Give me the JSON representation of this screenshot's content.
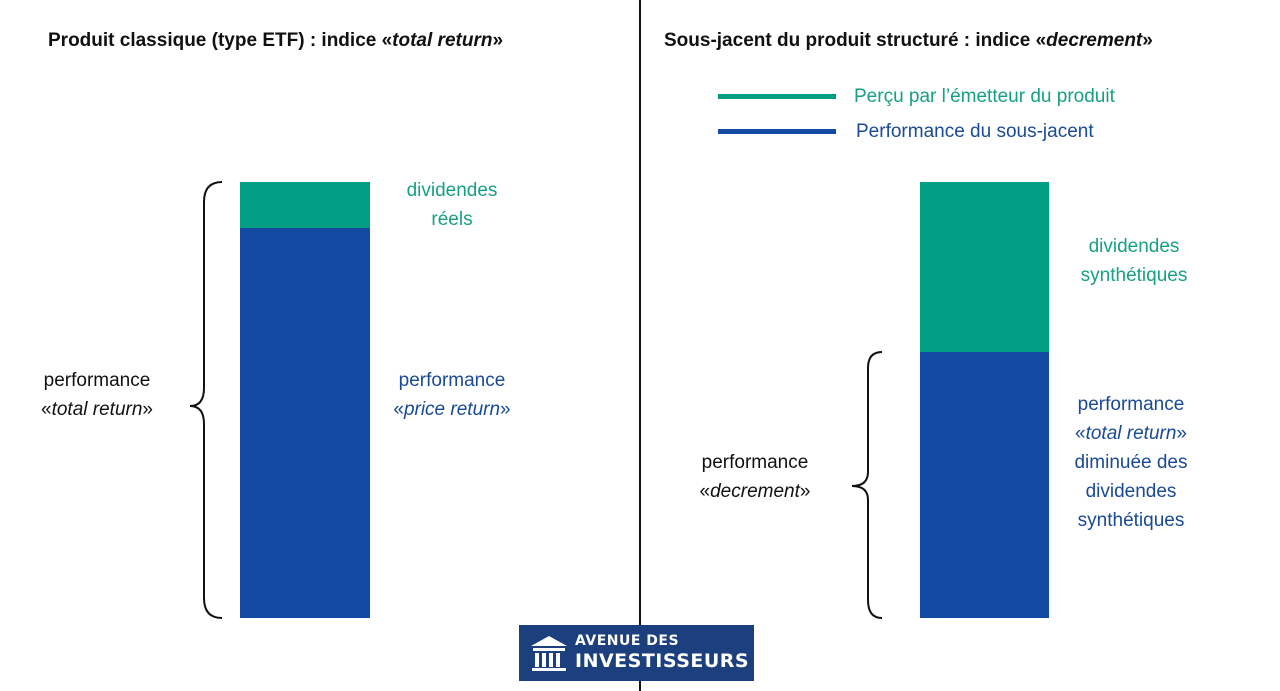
{
  "left_panel": {
    "title_prefix": "Produit classique (type ETF) : indice «",
    "title_italic": "total return",
    "title_suffix": "»",
    "top_segment_label": [
      "dividendes",
      "réels"
    ],
    "bottom_segment_label": {
      "line1": "performance",
      "line2_prefix": "«",
      "line2_italic": "price return",
      "line2_suffix": "»"
    },
    "brace_label": {
      "line1": "performance",
      "line2_prefix": "«",
      "line2_italic": "total return",
      "line2_suffix": "»"
    }
  },
  "right_panel": {
    "title_prefix": "Sous-jacent du produit structuré : indice «",
    "title_italic": "decrement",
    "title_suffix": "»",
    "legend": [
      {
        "label": "Perçu par l’émetteur du produit",
        "color": "#009e83"
      },
      {
        "label": "Performance du sous-jacent",
        "color": "#124aa4"
      }
    ],
    "top_segment_label": [
      "dividendes",
      "synthétiques"
    ],
    "bottom_segment_label": {
      "line1": "performance",
      "line2_prefix": "«",
      "line2_italic": "total return",
      "line2_suffix": "»",
      "line3": "diminuée des",
      "line4": "dividendes",
      "line5": "synthétiques"
    },
    "brace_label": {
      "line1": "performance",
      "line2_prefix": "«",
      "line2_italic": "decrement",
      "line2_suffix": "»"
    }
  },
  "logo": {
    "line1": "AVENUE DES",
    "line2": "INVESTISSEURS",
    "icon": "columns-building-icon"
  },
  "colors": {
    "teal": "#009e83",
    "blue": "#124aa4",
    "logo_bg": "#1c3f7d"
  }
}
